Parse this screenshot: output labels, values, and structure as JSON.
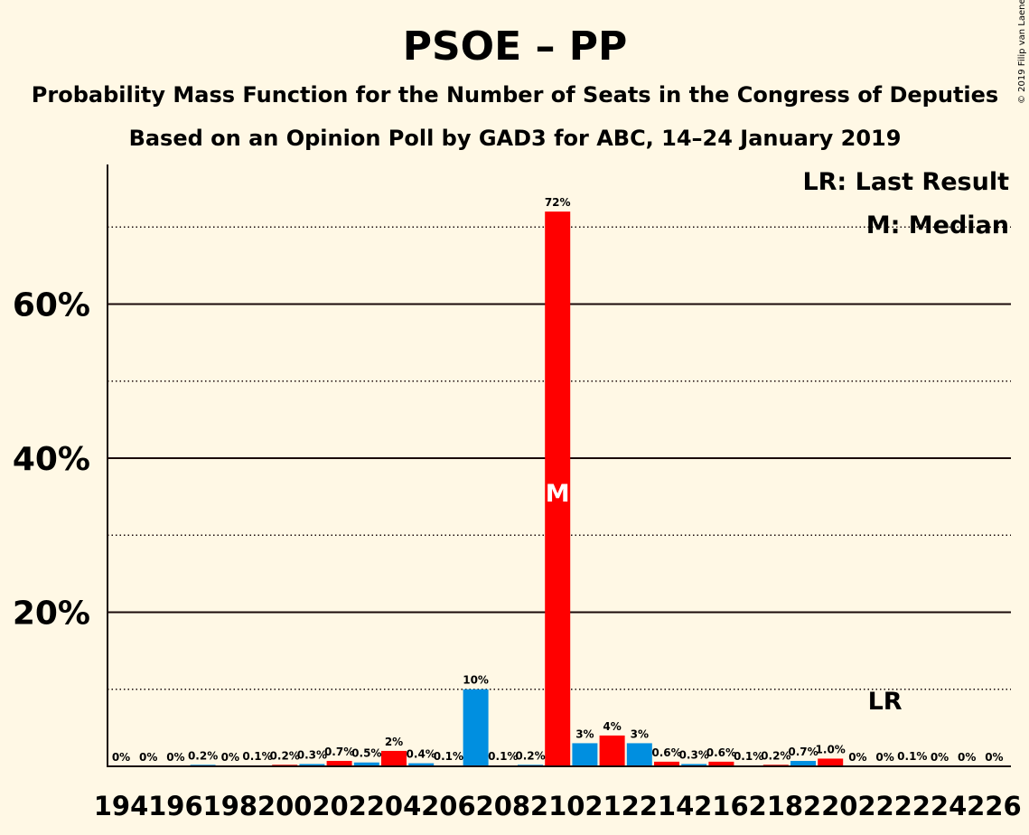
{
  "chart_data": {
    "type": "bar",
    "title": "PSOE – PP",
    "subtitle1": "Probability Mass Function for the Number of Seats in the Congress of Deputies",
    "subtitle2": "Based on an Opinion Poll by GAD3 for ABC, 14–24 January 2019",
    "copyright": "© 2019 Filip van Laenen",
    "legend_lr": "LR: Last Result",
    "legend_m": "M: Median",
    "median_marker": "M",
    "last_result_marker": "LR",
    "median_seat": 210,
    "last_result_seat": 222,
    "ylim": [
      0,
      78
    ],
    "y_major_ticks": [
      20,
      40,
      60
    ],
    "y_major_tick_labels": [
      "20%",
      "40%",
      "60%"
    ],
    "y_minor_gridlines": [
      10,
      30,
      50,
      70
    ],
    "x_tick_labels": [
      "194",
      "196",
      "198",
      "200",
      "202",
      "204",
      "206",
      "208",
      "210",
      "212",
      "214",
      "216",
      "218",
      "220",
      "222",
      "224",
      "226"
    ],
    "colors": {
      "psoe": "#FF0000",
      "pp": "#008FE0",
      "background": "#FFF8E5",
      "text": "#1a0a0a"
    },
    "bars": [
      {
        "seats": 194,
        "value": 0,
        "label": "0%",
        "color": "psoe"
      },
      {
        "seats": 195,
        "value": 0,
        "label": "0%",
        "color": "pp"
      },
      {
        "seats": 196,
        "value": 0,
        "label": "0%",
        "color": "psoe"
      },
      {
        "seats": 197,
        "value": 0.2,
        "label": "0.2%",
        "color": "pp"
      },
      {
        "seats": 198,
        "value": 0,
        "label": "0%",
        "color": "psoe"
      },
      {
        "seats": 199,
        "value": 0.1,
        "label": "0.1%",
        "color": "pp"
      },
      {
        "seats": 200,
        "value": 0.2,
        "label": "0.2%",
        "color": "psoe"
      },
      {
        "seats": 201,
        "value": 0.3,
        "label": "0.3%",
        "color": "pp"
      },
      {
        "seats": 202,
        "value": 0.7,
        "label": "0.7%",
        "color": "psoe"
      },
      {
        "seats": 203,
        "value": 0.5,
        "label": "0.5%",
        "color": "pp"
      },
      {
        "seats": 204,
        "value": 2,
        "label": "2%",
        "color": "psoe"
      },
      {
        "seats": 205,
        "value": 0.4,
        "label": "0.4%",
        "color": "pp"
      },
      {
        "seats": 206,
        "value": 0.1,
        "label": "0.1%",
        "color": "psoe"
      },
      {
        "seats": 207,
        "value": 10,
        "label": "10%",
        "color": "pp"
      },
      {
        "seats": 208,
        "value": 0.1,
        "label": "0.1%",
        "color": "psoe"
      },
      {
        "seats": 209,
        "value": 0.2,
        "label": "0.2%",
        "color": "pp"
      },
      {
        "seats": 210,
        "value": 72,
        "label": "72%",
        "color": "psoe"
      },
      {
        "seats": 211,
        "value": 3,
        "label": "3%",
        "color": "pp"
      },
      {
        "seats": 212,
        "value": 4,
        "label": "4%",
        "color": "psoe"
      },
      {
        "seats": 213,
        "value": 3,
        "label": "3%",
        "color": "pp"
      },
      {
        "seats": 214,
        "value": 0.6,
        "label": "0.6%",
        "color": "psoe"
      },
      {
        "seats": 215,
        "value": 0.3,
        "label": "0.3%",
        "color": "pp"
      },
      {
        "seats": 216,
        "value": 0.6,
        "label": "0.6%",
        "color": "psoe"
      },
      {
        "seats": 217,
        "value": 0.1,
        "label": "0.1%",
        "color": "pp"
      },
      {
        "seats": 218,
        "value": 0.2,
        "label": "0.2%",
        "color": "psoe"
      },
      {
        "seats": 219,
        "value": 0.7,
        "label": "0.7%",
        "color": "pp"
      },
      {
        "seats": 220,
        "value": 1.0,
        "label": "1.0%",
        "color": "psoe"
      },
      {
        "seats": 221,
        "value": 0,
        "label": "0%",
        "color": "pp"
      },
      {
        "seats": 222,
        "value": 0,
        "label": "0%",
        "color": "psoe"
      },
      {
        "seats": 223,
        "value": 0.1,
        "label": "0.1%",
        "color": "pp"
      },
      {
        "seats": 224,
        "value": 0,
        "label": "0%",
        "color": "psoe"
      },
      {
        "seats": 225,
        "value": 0,
        "label": "0%",
        "color": "pp"
      },
      {
        "seats": 226,
        "value": 0,
        "label": "0%",
        "color": "psoe"
      }
    ]
  }
}
